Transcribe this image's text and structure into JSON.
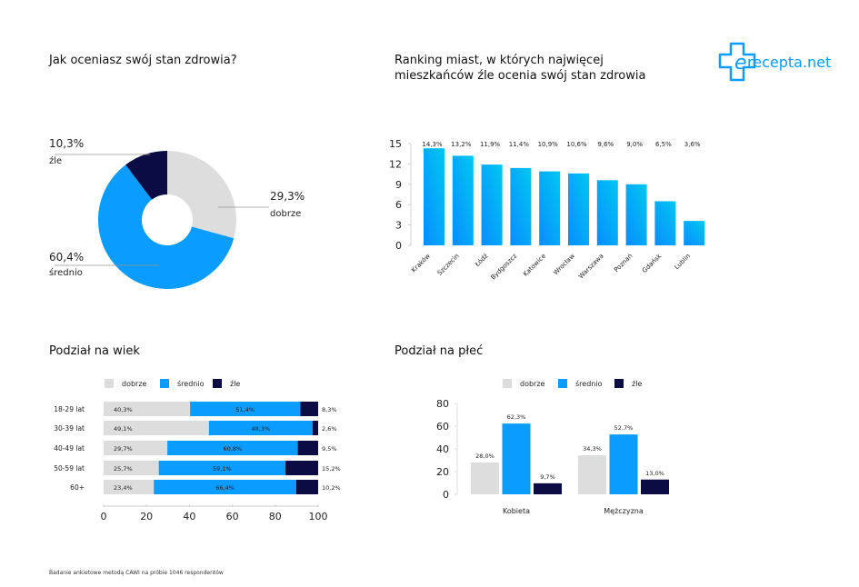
{
  "brand": {
    "logo_text": "recepta.net",
    "colors": {
      "accent": "#0a9cff",
      "dark": "#0c0c45",
      "light": "#dddddd",
      "cyan": "#00c3f0"
    }
  },
  "titles": {
    "overall": "Jak oceniasz swój stan zdrowia?",
    "ranking_line1": "Ranking miast, w których najwięcej",
    "ranking_line2": "mieszkańców źle ocenia swój stan zdrowia",
    "age": "Podział na wiek",
    "gender": "Podział na płeć"
  },
  "footnote": "Badanie ankietowe metodą CAWI na próbie 1046 respondentów",
  "chart_data": [
    {
      "type": "pie",
      "variant": "donut",
      "title": "Jak oceniasz swój stan zdrowia?",
      "slices": [
        {
          "label": "dobrze",
          "value": 29.3,
          "display": "29,3%",
          "color": "#dddddd"
        },
        {
          "label": "średnio",
          "value": 60.4,
          "display": "60,4%",
          "color": "#0a9cff"
        },
        {
          "label": "źle",
          "value": 10.3,
          "display": "10,3%",
          "color": "#0c0c45"
        }
      ]
    },
    {
      "type": "bar",
      "title": "Ranking miast, w których najwięcej mieszkańców źle ocenia swój stan zdrowia",
      "categories": [
        "Kraków",
        "Szczecin",
        "Łódź",
        "Bydgoszcz",
        "Katowice",
        "Wrocław",
        "Warszawa",
        "Poznań",
        "Gdańsk",
        "Lublin"
      ],
      "values": [
        14.3,
        13.2,
        11.9,
        11.4,
        10.9,
        10.6,
        9.6,
        9.0,
        6.5,
        3.6
      ],
      "data_labels": [
        "14,3%",
        "13,2%",
        "11,9%",
        "11,4%",
        "10,9%",
        "10,6%",
        "9,6%",
        "9,0%",
        "6,5%",
        "3,6%"
      ],
      "ylim": [
        0,
        15
      ],
      "yticks": [
        "0",
        "3",
        "6",
        "9",
        "12",
        "15"
      ],
      "grid": false
    },
    {
      "type": "bar",
      "variant": "stacked-horizontal",
      "title": "Podział na wiek",
      "categories": [
        "18-29 lat",
        "30-39 lat",
        "40-49 lat",
        "50-59 lat",
        "60+"
      ],
      "series": [
        {
          "name": "dobrze",
          "values": [
            40.3,
            49.1,
            29.7,
            25.7,
            23.4
          ],
          "labels": [
            "40,3%",
            "49,1%",
            "29,7%",
            "25,7%",
            "23,4%"
          ],
          "color": "#dddddd"
        },
        {
          "name": "średnio",
          "values": [
            51.4,
            48.3,
            60.8,
            59.1,
            66.4
          ],
          "labels": [
            "51,4%",
            "48,3%",
            "60,8%",
            "59,1%",
            "66,4%"
          ],
          "color": "#0a9cff"
        },
        {
          "name": "źle",
          "values": [
            8.3,
            2.6,
            9.5,
            15.2,
            10.2
          ],
          "labels": [
            "8,3%",
            "2,6%",
            "9,5%",
            "15,2%",
            "10,2%"
          ],
          "color": "#0c0c45"
        }
      ],
      "xlim": [
        0,
        100
      ],
      "xticks": [
        "0",
        "20",
        "40",
        "60",
        "80",
        "100"
      ],
      "legend": "top"
    },
    {
      "type": "bar",
      "variant": "grouped",
      "title": "Podział na płeć",
      "categories": [
        "Kobieta",
        "Mężczyzna"
      ],
      "series": [
        {
          "name": "dobrze",
          "values": [
            28.0,
            34.3
          ],
          "labels": [
            "28,0%",
            "34,3%"
          ],
          "color": "#dddddd"
        },
        {
          "name": "średnio",
          "values": [
            62.3,
            52.7
          ],
          "labels": [
            "62,3%",
            "52,7%"
          ],
          "color": "#0a9cff"
        },
        {
          "name": "źle",
          "values": [
            9.7,
            13.0
          ],
          "labels": [
            "9,7%",
            "13,0%"
          ],
          "color": "#0c0c45"
        }
      ],
      "ylim": [
        0,
        80
      ],
      "yticks": [
        "0",
        "20",
        "40",
        "60",
        "80"
      ],
      "legend": "top"
    }
  ]
}
